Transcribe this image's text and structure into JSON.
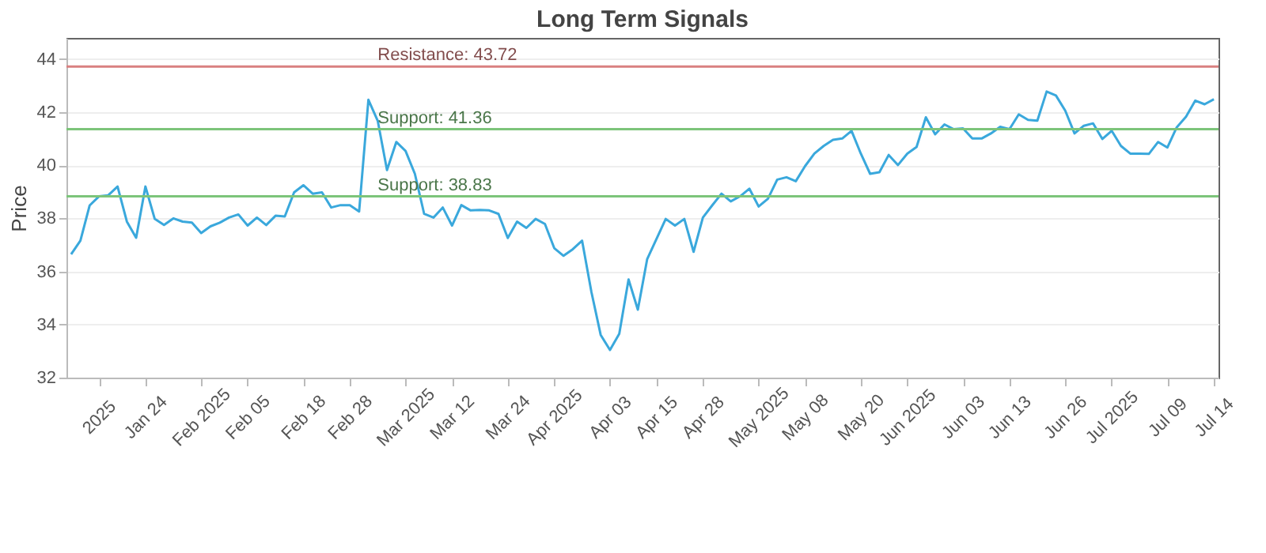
{
  "chart_data": {
    "type": "line",
    "title": "Long Term Signals",
    "ylabel": "Price",
    "categories": [
      null,
      null,
      null,
      "2025",
      null,
      null,
      null,
      null,
      "Jan 24",
      null,
      null,
      null,
      null,
      null,
      "Feb 2025",
      null,
      null,
      null,
      null,
      "Feb 05",
      null,
      null,
      null,
      null,
      null,
      "Feb 18",
      null,
      null,
      null,
      null,
      "Feb 28",
      null,
      null,
      null,
      null,
      null,
      "Mar 2025",
      null,
      null,
      null,
      null,
      "Mar 12",
      null,
      null,
      null,
      null,
      null,
      "Mar 24",
      null,
      null,
      null,
      null,
      "Apr 2025",
      null,
      null,
      null,
      null,
      null,
      "Apr 03",
      null,
      null,
      null,
      null,
      "Apr 15",
      null,
      null,
      null,
      null,
      "Apr 28",
      null,
      null,
      null,
      null,
      null,
      "May 2025",
      null,
      null,
      null,
      null,
      "May 08",
      null,
      null,
      null,
      null,
      null,
      "May 20",
      null,
      null,
      null,
      null,
      "Jun 2025",
      null,
      null,
      null,
      null,
      null,
      "Jun 03",
      null,
      null,
      null,
      null,
      "Jun 13",
      null,
      null,
      null,
      null,
      null,
      "Jun 26",
      null,
      null,
      null,
      null,
      "Jul 2025",
      null,
      null,
      null,
      null,
      null,
      "Jul 09",
      null,
      null,
      null,
      null,
      "Jul 14"
    ],
    "series": [
      {
        "color": "#3aa8dc",
        "values": [
          36.65,
          37.16,
          38.49,
          38.83,
          38.87,
          39.2,
          37.88,
          37.27,
          39.2,
          37.98,
          37.75,
          38.0,
          37.88,
          37.84,
          37.45,
          37.7,
          37.84,
          38.03,
          38.15,
          37.73,
          38.03,
          37.75,
          38.1,
          38.07,
          38.98,
          39.25,
          38.93,
          38.98,
          38.41,
          38.5,
          38.5,
          38.26,
          42.47,
          41.68,
          39.82,
          40.88,
          40.54,
          39.68,
          38.17,
          38.03,
          38.41,
          37.73,
          38.5,
          38.3,
          38.32,
          38.3,
          38.17,
          37.26,
          37.88,
          37.64,
          37.98,
          37.79,
          36.88,
          36.59,
          36.84,
          37.16,
          35.23,
          33.61,
          33.04,
          33.65,
          35.7,
          34.56,
          36.46,
          37.22,
          37.98,
          37.73,
          37.98,
          36.74,
          38.03,
          38.49,
          38.93,
          38.64,
          38.83,
          39.12,
          38.45,
          38.74,
          39.46,
          39.55,
          39.4,
          39.97,
          40.44,
          40.73,
          40.96,
          41.01,
          41.3,
          40.44,
          39.68,
          39.74,
          40.39,
          40.01,
          40.44,
          40.69,
          41.81,
          41.17,
          41.54,
          41.36,
          41.39,
          41.01,
          41.01,
          41.2,
          41.45,
          41.36,
          41.92,
          41.71,
          41.68,
          42.78,
          42.63,
          42.06,
          41.2,
          41.49,
          41.58,
          40.99,
          41.3,
          40.73,
          40.44,
          40.44,
          40.43,
          40.88,
          40.67,
          41.43,
          41.83,
          42.44,
          42.3,
          42.49
        ]
      }
    ],
    "ylim": [
      32,
      44.8
    ],
    "yticks": [
      32,
      34,
      36,
      38,
      40,
      42,
      44
    ],
    "grid": "y",
    "marker": "none",
    "ref_lines": [
      {
        "axis": "y",
        "value": 43.72,
        "label": "Resistance: 43.72",
        "color": "#d98080"
      },
      {
        "axis": "y",
        "value": 41.36,
        "label": "Support: 41.36",
        "color": "#7cc47a"
      },
      {
        "axis": "y",
        "value": 38.83,
        "label": "Support: 38.83",
        "color": "#7cc47a"
      }
    ]
  }
}
